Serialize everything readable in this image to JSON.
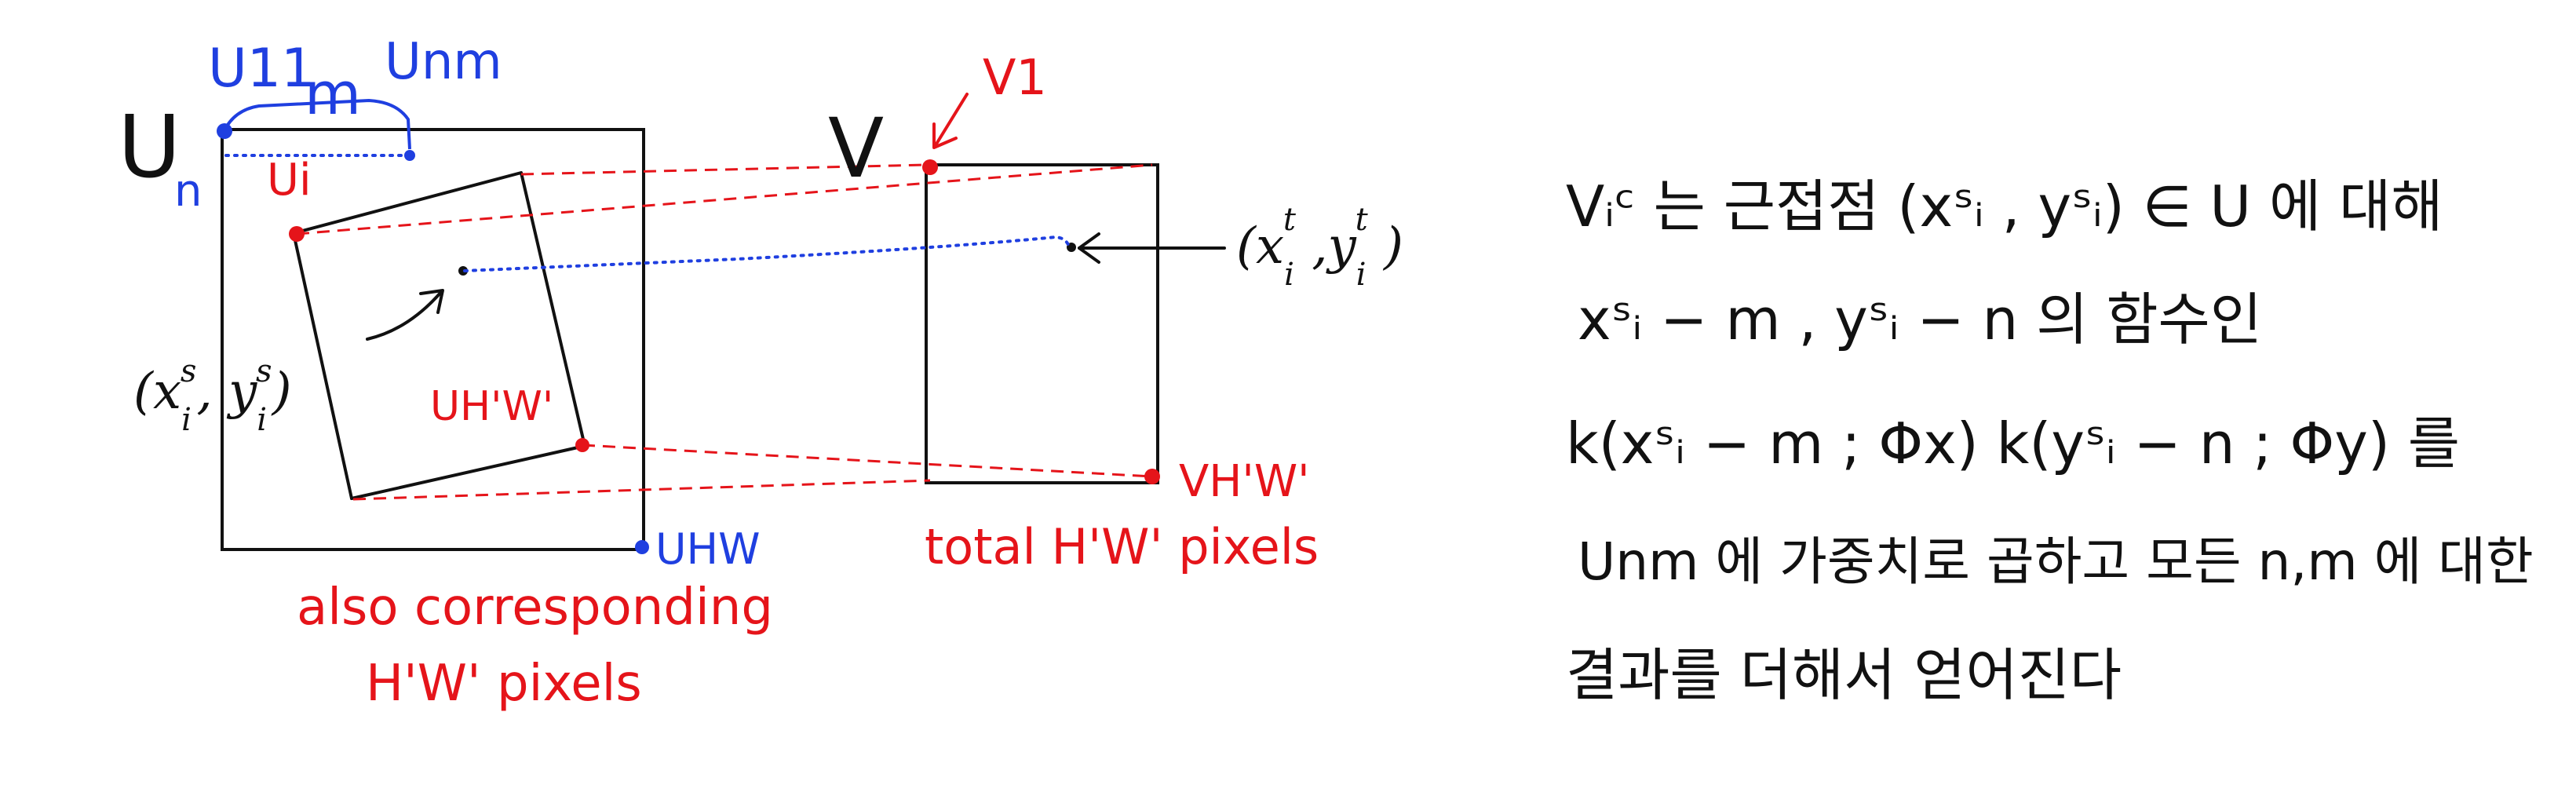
{
  "colors": {
    "ink": "#111111",
    "red": "#e5141a",
    "blue": "#1f3fe0"
  },
  "source": {
    "u_label": "U",
    "u_label_sub": "n",
    "u11": "U11",
    "m": "m",
    "unm": "Unm",
    "ui": "Ui",
    "coord_open": "(x",
    "coord_sup": "s",
    "coord_sub": "i",
    "coord_mid": ", y",
    "coord_close": ")",
    "uhw_prime": "UH'W'",
    "uhw": "UHW",
    "caption_line1": "also corresponding",
    "caption_line2": "H'W' pixels"
  },
  "target": {
    "v_label": "V",
    "v1": "V1",
    "vhw": "VH'W'",
    "caption": "total H'W' pixels",
    "coord_open": "(x",
    "coord_sup": "t",
    "coord_sub": "i",
    "coord_mid": " ,y",
    "coord_sup2": "t",
    "coord_sub2": "i",
    "coord_close": " )"
  },
  "notes": {
    "line1": "Vᵢᶜ 는 근접점 (xˢᵢ , yˢᵢ) ∈ U 에 대해",
    "line2": "xˢᵢ − m , yˢᵢ − n 의 함수인",
    "line3": "k(xˢᵢ − m ; Φx) k(yˢᵢ − n ; Φy) 를",
    "line4": "Unm 에 가중치로 곱하고 모든 n,m 에 대한",
    "line5": "결과를 더해서 얻어진다"
  }
}
